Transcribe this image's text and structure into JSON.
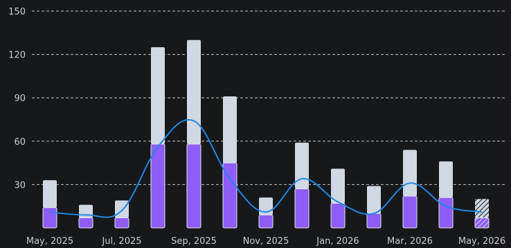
{
  "chart_data": {
    "type": "bar",
    "stacked": true,
    "categories": [
      "2025-05",
      "2025-06",
      "2025-07",
      "2025-08",
      "2025-09",
      "2025-10",
      "2025-11",
      "2025-12",
      "2026-01",
      "2026-02",
      "2026-03",
      "2026-04",
      "2026-05"
    ],
    "x_tick_labels": [
      {
        "category": "2025-05",
        "label": "May, 2025"
      },
      {
        "category": "2025-07",
        "label": "Jul, 2025"
      },
      {
        "category": "2025-09",
        "label": "Sep, 2025"
      },
      {
        "category": "2025-11",
        "label": "Nov, 2025"
      },
      {
        "category": "2026-01",
        "label": "Jan, 2026"
      },
      {
        "category": "2026-03",
        "label": "Mar, 2026"
      },
      {
        "category": "2026-05",
        "label": "May, 2026"
      }
    ],
    "series": [
      {
        "values": [
          14,
          7,
          7,
          58,
          58,
          45,
          9,
          27,
          17,
          10,
          22,
          21,
          7
        ],
        "color": "#8e5cf6"
      },
      {
        "values": [
          19,
          9,
          12,
          67,
          72,
          46,
          12,
          32,
          24,
          19,
          32,
          25,
          13
        ],
        "color": "#cfd8e3"
      }
    ],
    "line_series": {
      "values": [
        11,
        9,
        12,
        56,
        74,
        34,
        11,
        34,
        18,
        10,
        31,
        15,
        11
      ],
      "color": "#1e88e5"
    },
    "hatched_categories": [
      "2026-05"
    ],
    "ylim": [
      0,
      150
    ],
    "y_ticks": [
      30,
      60,
      90,
      120,
      150
    ],
    "grid": true,
    "grid_style": "dashed",
    "legend": "none",
    "colors": {
      "background": "#17181a",
      "text": "#c8cdd2",
      "grid": "#d8dce0"
    }
  }
}
